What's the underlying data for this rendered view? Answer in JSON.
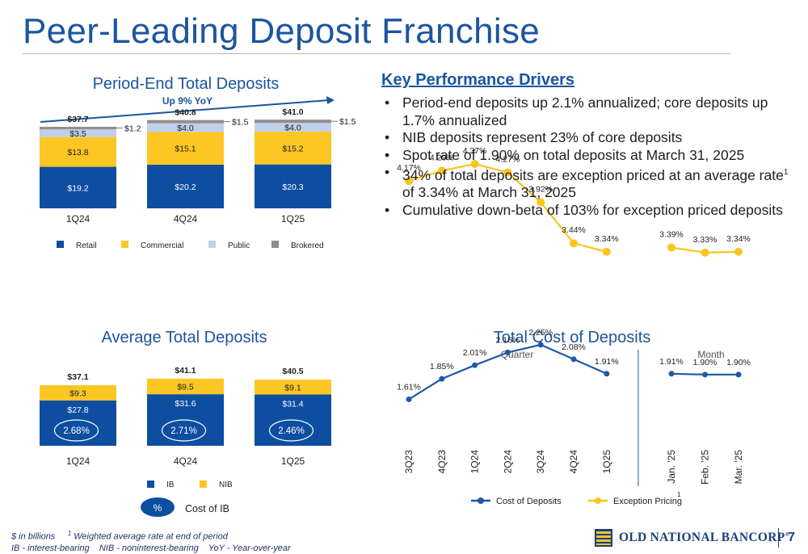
{
  "title": "Peer-Leading Deposit Franchise",
  "key_drivers": {
    "heading": "Key Performance Drivers",
    "bullets": [
      {
        "text": "Period-end deposits up 2.1% annualized; core deposits up 1.7% annualized"
      },
      {
        "text": "NIB deposits represent 23% of core deposits"
      },
      {
        "text": "Spot rate of 1.90% on total deposits at March 31, 2025"
      },
      {
        "text_before": "34% of total deposits are exception priced at an average rate",
        "sup": "1",
        "text_after": " of 3.34% at March 31, 2025"
      },
      {
        "text": "Cumulative down-beta of 103% for exception priced deposits"
      }
    ]
  },
  "colors": {
    "retail": "#0d4ea1",
    "commercial": "#fcc625",
    "public": "#c0cfea",
    "brokered": "#8f8f8f",
    "title": "#1b55a0",
    "cost_line": "#1f58a8",
    "exception_line": "#f9c51f"
  },
  "footnote": {
    "line1_a": "$ in billions",
    "line1_sup": "1",
    "line1_b": "Weighted average rate at end of period",
    "line2": "IB - interest-bearing    NIB - noninterest-bearing    YoY - Year-over-year"
  },
  "brand": {
    "name": "OLD NATIONAL BANCORP",
    "mark": "®"
  },
  "page_number": "7",
  "chart_data": [
    {
      "id": "period_end",
      "type": "bar",
      "stacked": true,
      "title": "Period-End Total Deposits",
      "annotation": "Up 9% YoY",
      "categories": [
        "1Q24",
        "4Q24",
        "1Q25"
      ],
      "totals": [
        "$37.7",
        "$40.8",
        "$41.0"
      ],
      "series": [
        {
          "name": "Retail",
          "color_key": "retail",
          "values": [
            19.2,
            20.2,
            20.3
          ],
          "labels": [
            "$19.2",
            "$20.2",
            "$20.3"
          ]
        },
        {
          "name": "Commercial",
          "color_key": "commercial",
          "values": [
            13.8,
            15.1,
            15.2
          ],
          "labels": [
            "$13.8",
            "$15.1",
            "$15.2"
          ]
        },
        {
          "name": "Public",
          "color_key": "public",
          "values": [
            3.5,
            4.0,
            4.0
          ],
          "labels": [
            "$3.5",
            "$4.0",
            "$4.0"
          ]
        },
        {
          "name": "Brokered",
          "color_key": "brokered",
          "values": [
            1.2,
            1.5,
            1.5
          ],
          "labels": [
            "$1.2",
            "$1.5",
            "$1.5"
          ]
        }
      ],
      "legend_position": "bottom",
      "grid": false
    },
    {
      "id": "average",
      "type": "bar",
      "stacked": true,
      "title": "Average Total Deposits",
      "categories": [
        "1Q24",
        "4Q24",
        "1Q25"
      ],
      "totals": [
        "$37.1",
        "$41.1",
        "$40.5"
      ],
      "series": [
        {
          "name": "IB",
          "color_key": "retail",
          "values": [
            27.8,
            31.6,
            31.4
          ],
          "labels": [
            "$27.8",
            "$31.6",
            "$31.4"
          ]
        },
        {
          "name": "NIB",
          "color_key": "commercial",
          "values": [
            9.3,
            9.5,
            9.1
          ],
          "labels": [
            "$9.3",
            "$9.5",
            "$9.1"
          ]
        }
      ],
      "cost_of_ib": [
        "2.68%",
        "2.71%",
        "2.46%"
      ],
      "cost_legend": {
        "symbol": "%",
        "label": "Cost of IB"
      },
      "legend_position": "bottom",
      "grid": false
    },
    {
      "id": "cost",
      "type": "line",
      "title": "Total Cost of Deposits",
      "groups": [
        {
          "name": "Quarter",
          "x": [
            "3Q23",
            "4Q23",
            "1Q24",
            "2Q24",
            "3Q24",
            "4Q24",
            "1Q25"
          ],
          "cost_of_deposits": [
            1.61,
            1.85,
            2.01,
            2.16,
            2.25,
            2.08,
            1.91
          ],
          "cost_labels": [
            "1.61%",
            "1.85%",
            "2.01%",
            "2.16%",
            "2.25%",
            "2.08%",
            "1.91%"
          ],
          "exception_pricing": [
            4.17,
            4.29,
            4.37,
            4.27,
            3.92,
            3.44,
            3.34
          ],
          "exception_labels": [
            "4.17%",
            "4.29%",
            "4.37%",
            "4.27%",
            "3.92%",
            "3.44%",
            "3.34%"
          ]
        },
        {
          "name": "Month",
          "x": [
            "Jan. '25",
            "Feb. '25",
            "Mar. '25"
          ],
          "cost_of_deposits": [
            1.91,
            1.9,
            1.9
          ],
          "cost_labels": [
            "1.91%",
            "1.90%",
            "1.90%"
          ],
          "exception_pricing": [
            3.39,
            3.33,
            3.34
          ],
          "exception_labels": [
            "3.39%",
            "3.33%",
            "3.34%"
          ]
        }
      ],
      "series": [
        {
          "name": "Cost of Deposits",
          "color_key": "cost_line"
        },
        {
          "name": "Exception Pricing",
          "color_key": "exception_line",
          "sup": "1"
        }
      ],
      "legend_position": "bottom",
      "grid": false
    }
  ]
}
